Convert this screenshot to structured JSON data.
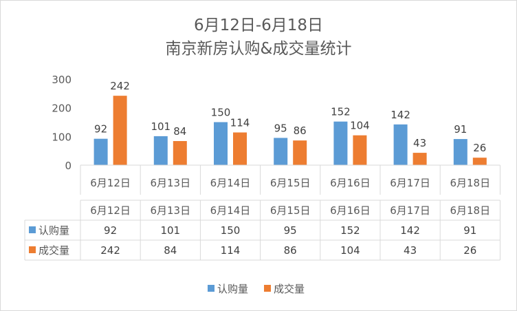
{
  "chart_data": {
    "type": "bar",
    "title_line1": "6月12日-6月18日",
    "title_line2": "南京新房认购&成交量统计",
    "categories": [
      "6月12日",
      "6月13日",
      "6月14日",
      "6月15日",
      "6月16日",
      "6月17日",
      "6月18日"
    ],
    "series": [
      {
        "name": "认购量",
        "color": "#5b9bd5",
        "values": [
          92,
          101,
          150,
          95,
          152,
          142,
          91
        ]
      },
      {
        "name": "成交量",
        "color": "#ed7d31",
        "values": [
          242,
          84,
          114,
          86,
          104,
          43,
          26
        ]
      }
    ],
    "ylim": [
      0,
      300
    ],
    "yticks": [
      0,
      100,
      200,
      300
    ],
    "grid": false,
    "data_table": true,
    "legend_position": "bottom"
  }
}
